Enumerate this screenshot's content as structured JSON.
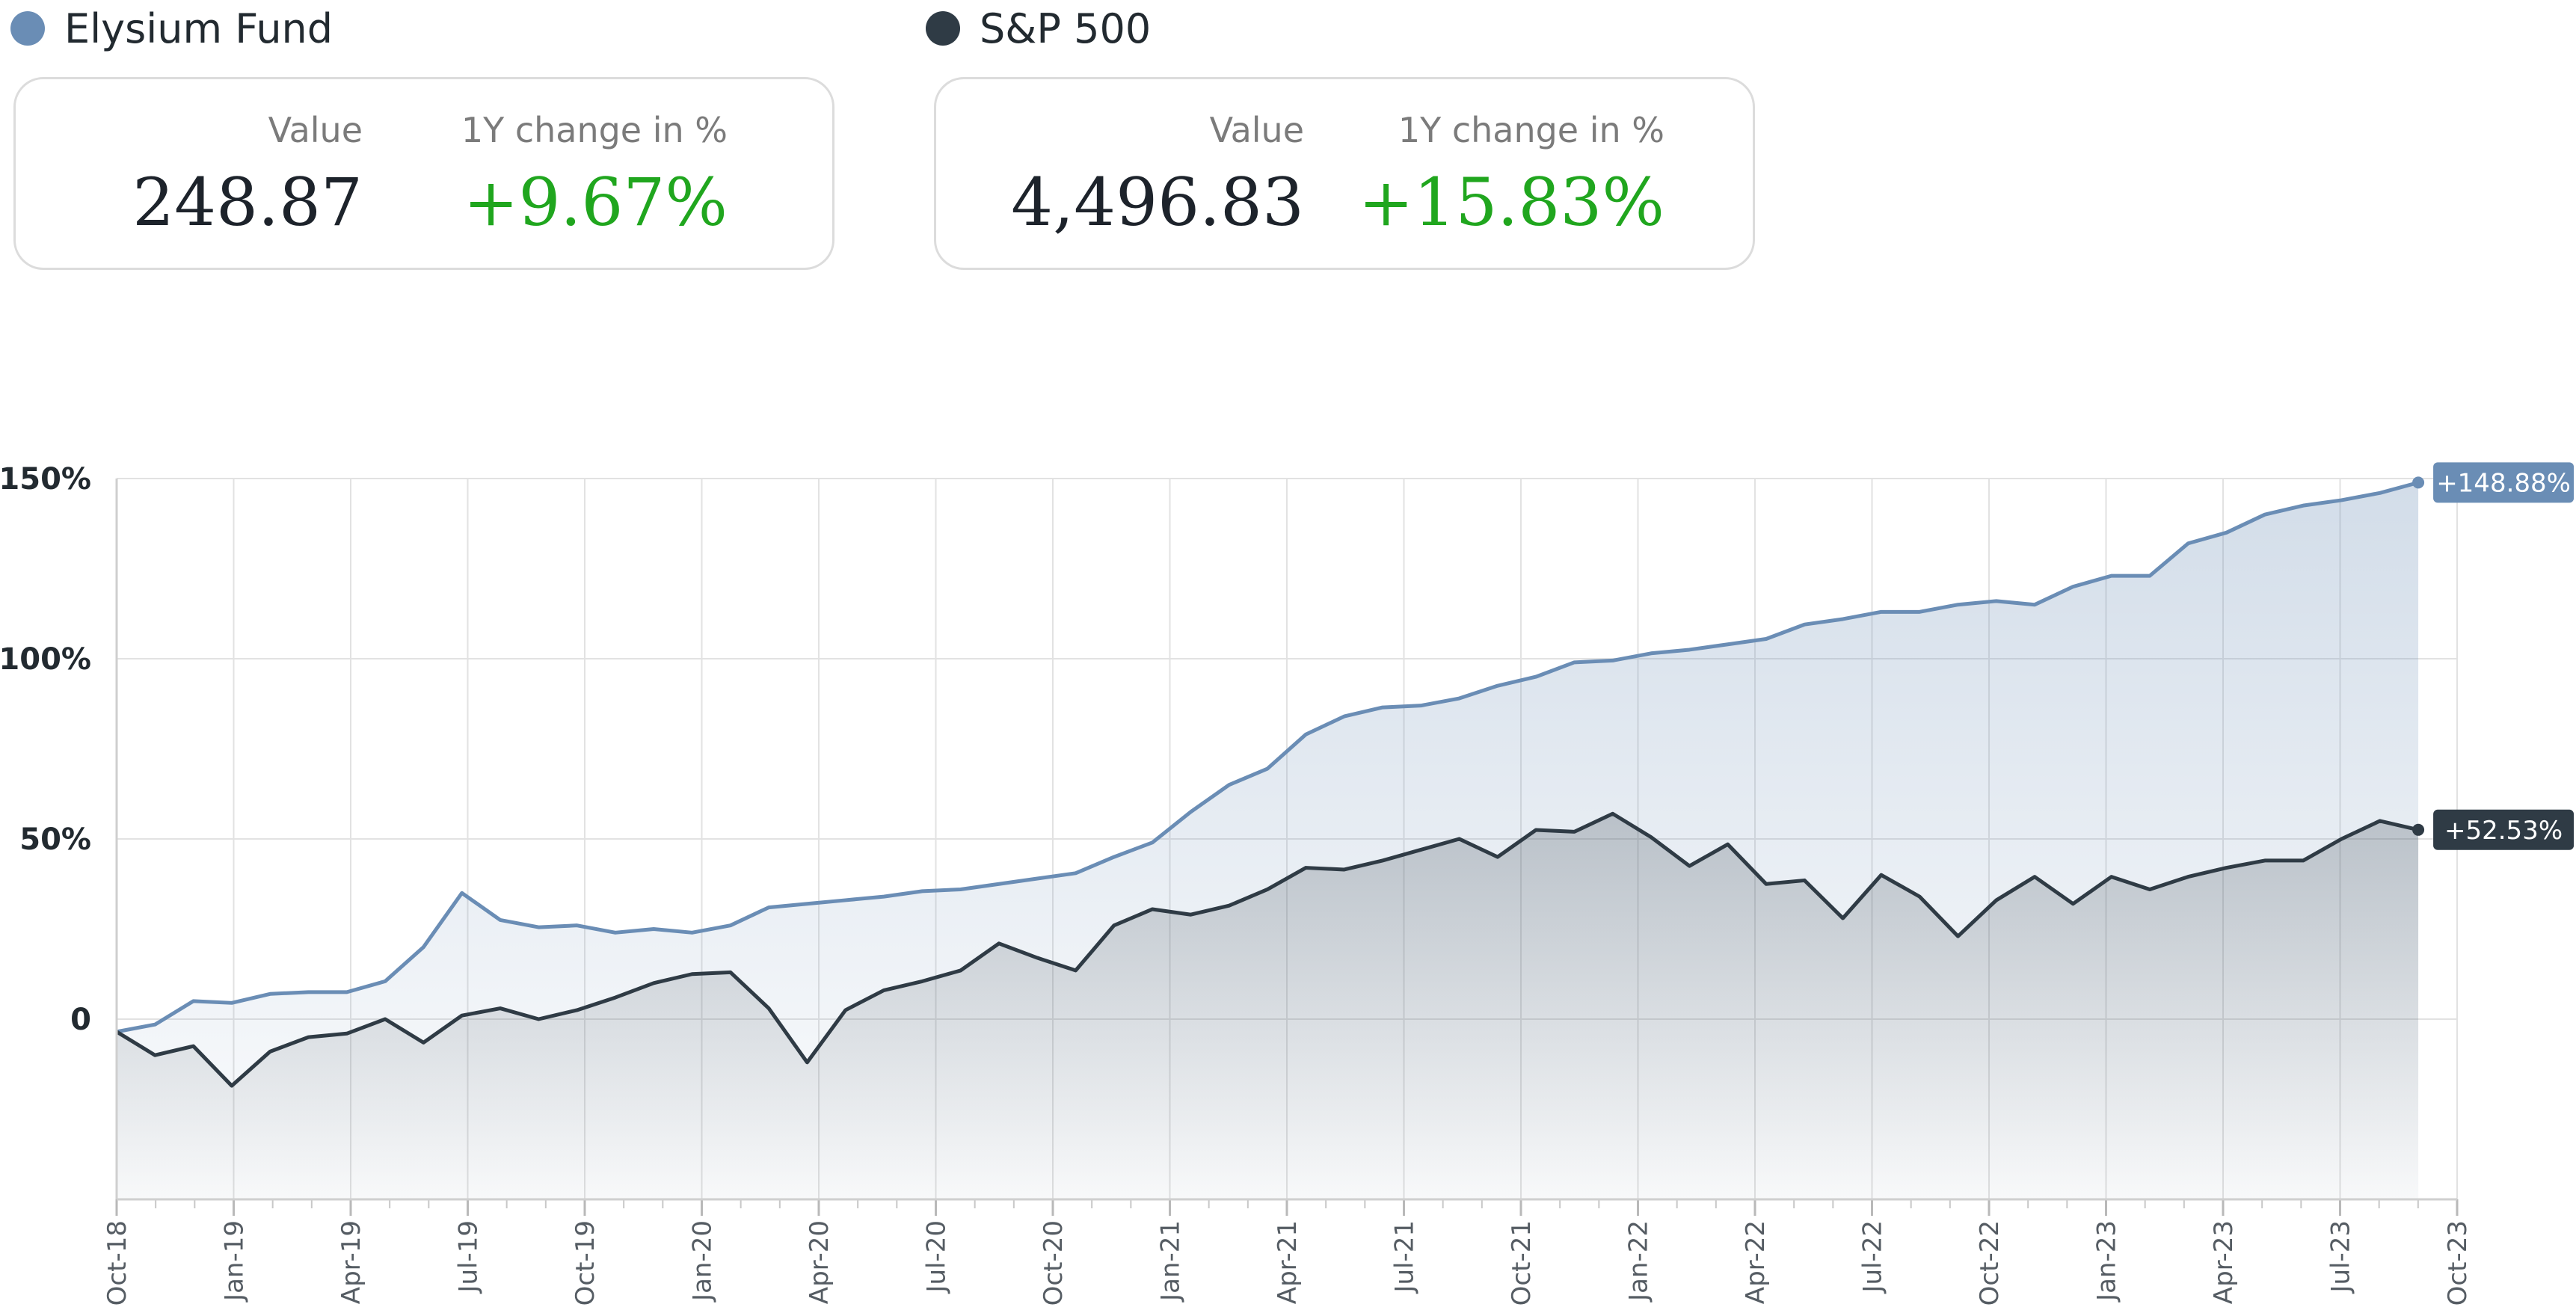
{
  "legend": [
    {
      "label": "Elysium Fund",
      "color": "#6a8db5"
    },
    {
      "label": "S&P 500",
      "color": "#2f3b45"
    }
  ],
  "cards": [
    {
      "value_label": "Value",
      "value": "248.87",
      "change_label": "1Y change in %",
      "change": "+9.67%"
    },
    {
      "value_label": "Value",
      "value": "4,496.83",
      "change_label": "1Y change in %",
      "change": "+15.83%"
    }
  ],
  "colors": {
    "fund": "#6a8db5",
    "index": "#2f3b45",
    "positive": "#20a61e",
    "grid": "#e2e2e2"
  },
  "chart_data": {
    "type": "line",
    "x_label_format": "MMM-YY",
    "x_ticks": [
      "Oct-18",
      "Jan-19",
      "Apr-19",
      "Jul-19",
      "Oct-19",
      "Jan-20",
      "Apr-20",
      "Jul-20",
      "Oct-20",
      "Jan-21",
      "Apr-21",
      "Jul-21",
      "Oct-21",
      "Jan-22",
      "Apr-22",
      "Jul-22",
      "Oct-22",
      "Jan-23",
      "Apr-23",
      "Jul-23",
      "Oct-23"
    ],
    "y_ticks": [
      {
        "value": 150,
        "label": "150%"
      },
      {
        "value": 100,
        "label": "100%"
      },
      {
        "value": 50,
        "label": "50%"
      },
      {
        "value": 0,
        "label": "0"
      }
    ],
    "ylim": [
      -50,
      150
    ],
    "grid": true,
    "series": [
      {
        "name": "Elysium Fund",
        "color": "#6a8db5",
        "end_label": "+148.88%",
        "values": [
          -3.5,
          -1.5,
          5,
          4.5,
          7,
          7.5,
          7.5,
          10.5,
          20,
          35,
          27.5,
          25.5,
          26,
          24,
          25,
          24,
          26,
          31,
          32,
          33,
          34,
          35.5,
          36,
          37.5,
          39,
          40.5,
          45,
          49,
          57.5,
          65,
          69.5,
          79,
          84,
          86.5,
          87,
          89,
          92.5,
          95,
          99,
          99.5,
          101.5,
          102.5,
          104,
          105.5,
          109.5,
          111,
          113,
          113,
          115,
          116,
          115,
          120,
          123,
          123,
          132,
          135,
          140,
          142.5,
          144,
          146,
          148.88
        ]
      },
      {
        "name": "S&P 500",
        "color": "#2f3b45",
        "end_label": "+52.53%",
        "values": [
          -3.5,
          -10,
          -7.5,
          -18.5,
          -9,
          -5,
          -4,
          0,
          -6.5,
          1,
          3,
          0,
          2.5,
          6,
          10,
          12.5,
          13,
          3,
          -12,
          2.5,
          8,
          10.5,
          13.5,
          21,
          17,
          13.5,
          26,
          30.5,
          29,
          31.5,
          36,
          42,
          41.5,
          44,
          47,
          50,
          45,
          52.5,
          52,
          57,
          50.5,
          42.5,
          48.5,
          37.5,
          38.5,
          28,
          40,
          34,
          23,
          33,
          39.5,
          32,
          39.5,
          36,
          39.5,
          42,
          44,
          44,
          50,
          55,
          52.53
        ]
      }
    ]
  }
}
